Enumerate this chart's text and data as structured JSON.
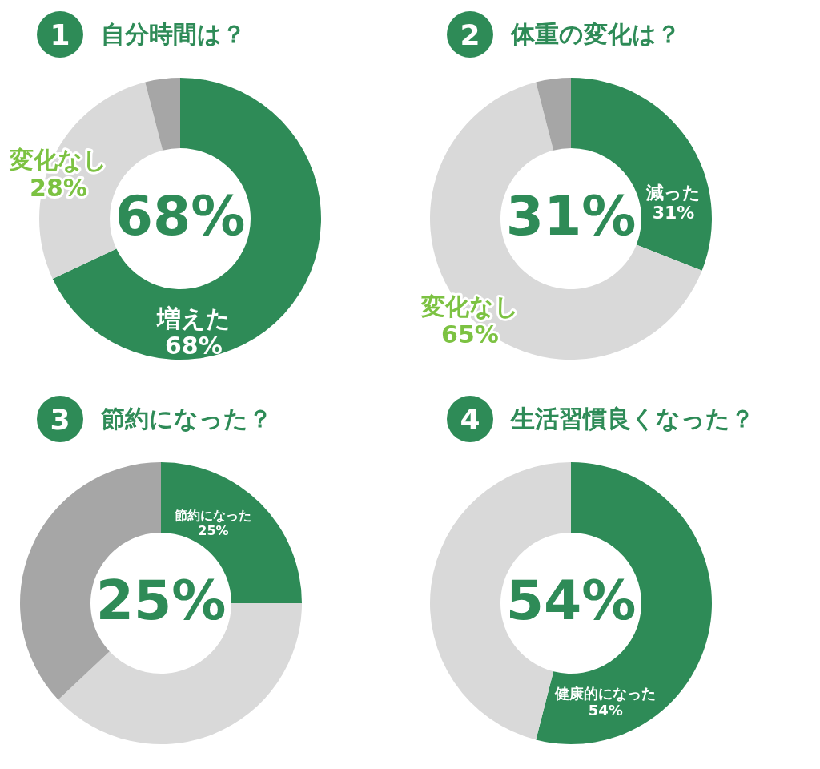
{
  "chart_data": [
    {
      "type": "donut",
      "title": "自分時間は？",
      "categories": [
        "増えた",
        "変化なし",
        null
      ],
      "values": [
        68,
        28,
        4
      ],
      "colors": [
        "#2e8b57",
        "#d9d9d9",
        "#a6a6a6"
      ],
      "value_labels": [
        "68%",
        "28%",
        null
      ],
      "annotations": [
        "1",
        "68%"
      ]
    },
    {
      "type": "donut",
      "title": "体重の変化は？",
      "categories": [
        "減った",
        "変化なし",
        null
      ],
      "values": [
        31,
        65,
        4
      ],
      "colors": [
        "#2e8b57",
        "#d9d9d9",
        "#a6a6a6"
      ],
      "value_labels": [
        "31%",
        "65%",
        null
      ],
      "annotations": [
        "2",
        "31%"
      ]
    },
    {
      "type": "donut",
      "title": "節約になった？",
      "categories": [
        "節約になった",
        null,
        null
      ],
      "values": [
        25,
        38,
        37
      ],
      "colors": [
        "#2e8b57",
        "#d9d9d9",
        "#a6a6a6"
      ],
      "value_labels": [
        "25%",
        null,
        null
      ],
      "annotations": [
        "3",
        "25%"
      ]
    },
    {
      "type": "donut",
      "title": "生活習慣良くなった？",
      "categories": [
        "健康的になった",
        null
      ],
      "values": [
        54,
        46
      ],
      "colors": [
        "#2e8b57",
        "#d9d9d9"
      ],
      "value_labels": [
        "54%",
        null
      ],
      "annotations": [
        "4",
        "54%"
      ]
    }
  ]
}
